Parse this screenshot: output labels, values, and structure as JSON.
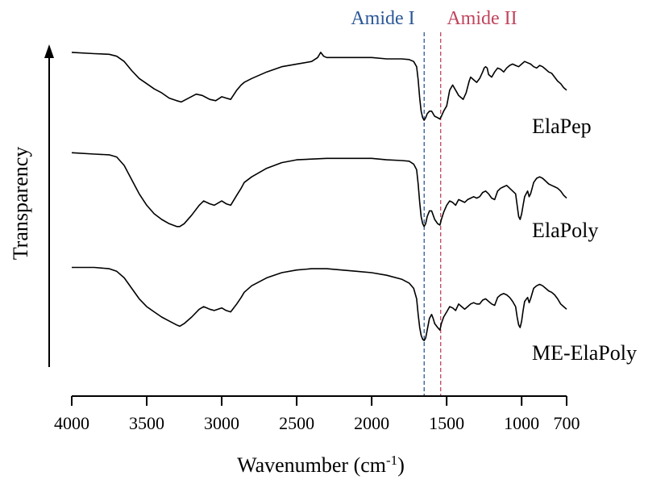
{
  "chart_data": {
    "type": "line",
    "xlabel": "Wavenumber (cm",
    "xlabel_sup": "-1",
    "xlabel_suffix": ")",
    "ylabel": "Transparency",
    "x_reversed": true,
    "xlim": [
      4000,
      700
    ],
    "x_ticks": [
      4000,
      3500,
      3000,
      2500,
      2000,
      1500,
      1000,
      700
    ],
    "ylim": [
      0,
      1
    ],
    "y_ticks_shown": false,
    "grid": false,
    "legend": "inline labels at right",
    "colors": {
      "line": "#000000",
      "amide1": "#2b5797",
      "amide2": "#c0445c"
    },
    "annotations": [
      {
        "label": "Amide I",
        "x": 1650,
        "color": "#2b5797"
      },
      {
        "label": "Amide II",
        "x": 1540,
        "color": "#c0445c"
      }
    ],
    "series": [
      {
        "name": "ElaPep",
        "x": [
          4000,
          3850,
          3750,
          3700,
          3650,
          3600,
          3550,
          3500,
          3450,
          3400,
          3350,
          3300,
          3270,
          3220,
          3170,
          3130,
          3080,
          3040,
          3000,
          2970,
          2940,
          2900,
          2870,
          2850,
          2800,
          2700,
          2600,
          2500,
          2400,
          2360,
          2340,
          2320,
          2300,
          2200,
          2100,
          2000,
          1900,
          1800,
          1750,
          1720,
          1700,
          1690,
          1680,
          1670,
          1660,
          1650,
          1640,
          1630,
          1615,
          1600,
          1590,
          1580,
          1560,
          1545,
          1535,
          1520,
          1500,
          1480,
          1460,
          1440,
          1420,
          1400,
          1390,
          1370,
          1350,
          1340,
          1320,
          1300,
          1280,
          1260,
          1250,
          1240,
          1230,
          1220,
          1200,
          1180,
          1160,
          1140,
          1120,
          1100,
          1080,
          1060,
          1040,
          1020,
          1000,
          980,
          960,
          940,
          920,
          900,
          880,
          860,
          840,
          820,
          800,
          780,
          760,
          740,
          720,
          700
        ],
        "y": [
          0.97,
          0.96,
          0.955,
          0.94,
          0.9,
          0.83,
          0.77,
          0.73,
          0.69,
          0.66,
          0.62,
          0.6,
          0.59,
          0.62,
          0.65,
          0.64,
          0.61,
          0.6,
          0.63,
          0.62,
          0.61,
          0.68,
          0.72,
          0.74,
          0.77,
          0.82,
          0.86,
          0.88,
          0.9,
          0.93,
          0.97,
          0.94,
          0.93,
          0.93,
          0.93,
          0.93,
          0.92,
          0.92,
          0.915,
          0.9,
          0.86,
          0.76,
          0.62,
          0.52,
          0.47,
          0.45,
          0.47,
          0.5,
          0.52,
          0.52,
          0.5,
          0.48,
          0.47,
          0.46,
          0.48,
          0.52,
          0.56,
          0.68,
          0.72,
          0.68,
          0.64,
          0.62,
          0.61,
          0.66,
          0.75,
          0.78,
          0.76,
          0.74,
          0.77,
          0.82,
          0.85,
          0.86,
          0.85,
          0.8,
          0.78,
          0.82,
          0.85,
          0.84,
          0.82,
          0.85,
          0.87,
          0.88,
          0.87,
          0.86,
          0.88,
          0.9,
          0.89,
          0.88,
          0.86,
          0.85,
          0.87,
          0.86,
          0.84,
          0.82,
          0.81,
          0.78,
          0.75,
          0.73,
          0.7,
          0.68
        ]
      },
      {
        "name": "ElaPoly",
        "x": [
          4000,
          3850,
          3750,
          3700,
          3650,
          3600,
          3550,
          3500,
          3450,
          3400,
          3350,
          3300,
          3280,
          3250,
          3200,
          3150,
          3120,
          3080,
          3050,
          3000,
          2970,
          2940,
          2900,
          2870,
          2850,
          2800,
          2700,
          2600,
          2500,
          2400,
          2300,
          2200,
          2100,
          2000,
          1900,
          1800,
          1750,
          1720,
          1700,
          1690,
          1680,
          1670,
          1660,
          1650,
          1640,
          1630,
          1615,
          1600,
          1590,
          1580,
          1560,
          1545,
          1535,
          1520,
          1500,
          1480,
          1460,
          1440,
          1420,
          1400,
          1380,
          1360,
          1340,
          1320,
          1300,
          1280,
          1260,
          1240,
          1220,
          1200,
          1180,
          1160,
          1140,
          1120,
          1100,
          1080,
          1060,
          1040,
          1030,
          1020,
          1010,
          1000,
          990,
          980,
          960,
          950,
          940,
          930,
          920,
          900,
          880,
          860,
          840,
          820,
          800,
          780,
          760,
          740,
          720,
          700
        ],
        "y": [
          0.97,
          0.96,
          0.955,
          0.94,
          0.88,
          0.78,
          0.68,
          0.6,
          0.54,
          0.5,
          0.47,
          0.45,
          0.45,
          0.47,
          0.53,
          0.6,
          0.63,
          0.61,
          0.6,
          0.63,
          0.61,
          0.6,
          0.67,
          0.72,
          0.76,
          0.8,
          0.86,
          0.9,
          0.92,
          0.925,
          0.93,
          0.93,
          0.93,
          0.93,
          0.92,
          0.915,
          0.91,
          0.89,
          0.85,
          0.75,
          0.62,
          0.52,
          0.47,
          0.45,
          0.47,
          0.52,
          0.56,
          0.56,
          0.53,
          0.5,
          0.47,
          0.46,
          0.5,
          0.55,
          0.6,
          0.63,
          0.62,
          0.6,
          0.64,
          0.63,
          0.62,
          0.64,
          0.65,
          0.66,
          0.65,
          0.66,
          0.69,
          0.7,
          0.68,
          0.65,
          0.64,
          0.7,
          0.72,
          0.73,
          0.74,
          0.72,
          0.7,
          0.68,
          0.6,
          0.52,
          0.5,
          0.54,
          0.6,
          0.66,
          0.7,
          0.66,
          0.68,
          0.72,
          0.76,
          0.79,
          0.8,
          0.79,
          0.77,
          0.75,
          0.74,
          0.73,
          0.72,
          0.7,
          0.67,
          0.65
        ]
      },
      {
        "name": "ME-ElaPoly",
        "x": [
          4000,
          3850,
          3750,
          3700,
          3650,
          3600,
          3550,
          3500,
          3450,
          3400,
          3350,
          3300,
          3280,
          3250,
          3200,
          3150,
          3120,
          3080,
          3050,
          3000,
          2970,
          2940,
          2900,
          2870,
          2850,
          2800,
          2700,
          2600,
          2500,
          2400,
          2300,
          2200,
          2100,
          2000,
          1900,
          1800,
          1750,
          1720,
          1700,
          1690,
          1680,
          1670,
          1660,
          1650,
          1640,
          1630,
          1615,
          1600,
          1590,
          1580,
          1560,
          1545,
          1535,
          1520,
          1500,
          1480,
          1460,
          1440,
          1420,
          1400,
          1380,
          1360,
          1340,
          1320,
          1300,
          1280,
          1260,
          1240,
          1220,
          1200,
          1180,
          1160,
          1140,
          1120,
          1100,
          1080,
          1060,
          1040,
          1030,
          1020,
          1010,
          1000,
          990,
          980,
          960,
          950,
          940,
          930,
          920,
          900,
          880,
          860,
          840,
          820,
          800,
          780,
          760,
          740,
          720,
          700
        ],
        "y": [
          0.96,
          0.96,
          0.95,
          0.93,
          0.88,
          0.8,
          0.72,
          0.66,
          0.62,
          0.58,
          0.55,
          0.52,
          0.51,
          0.53,
          0.58,
          0.64,
          0.66,
          0.64,
          0.63,
          0.65,
          0.63,
          0.62,
          0.68,
          0.73,
          0.77,
          0.82,
          0.88,
          0.92,
          0.94,
          0.95,
          0.95,
          0.94,
          0.93,
          0.92,
          0.9,
          0.87,
          0.84,
          0.8,
          0.72,
          0.6,
          0.5,
          0.44,
          0.41,
          0.4,
          0.42,
          0.48,
          0.57,
          0.6,
          0.57,
          0.53,
          0.5,
          0.48,
          0.53,
          0.58,
          0.62,
          0.66,
          0.65,
          0.63,
          0.68,
          0.66,
          0.64,
          0.66,
          0.68,
          0.69,
          0.68,
          0.68,
          0.71,
          0.72,
          0.7,
          0.68,
          0.67,
          0.73,
          0.75,
          0.76,
          0.75,
          0.73,
          0.7,
          0.66,
          0.58,
          0.52,
          0.5,
          0.55,
          0.63,
          0.7,
          0.73,
          0.69,
          0.72,
          0.76,
          0.8,
          0.82,
          0.83,
          0.82,
          0.8,
          0.78,
          0.77,
          0.75,
          0.72,
          0.68,
          0.66,
          0.64
        ]
      }
    ]
  }
}
